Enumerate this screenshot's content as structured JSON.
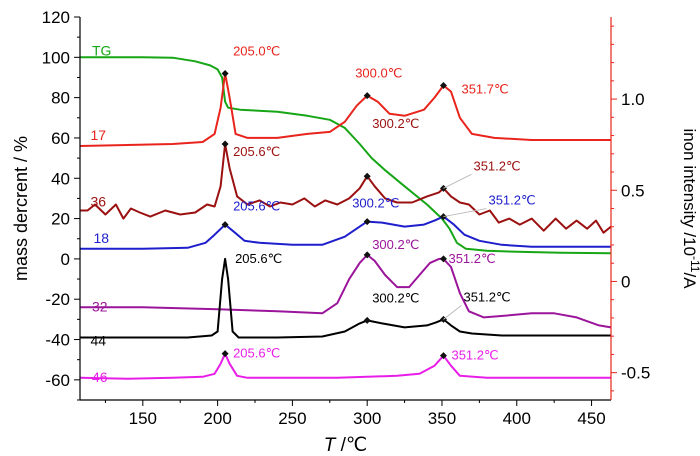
{
  "chart_data": {
    "type": "line",
    "xlabel": "T /°C",
    "xlabel_italic_part": "T",
    "xlabel_rest": " /℃",
    "ylabel_left": "mass dercrent / %",
    "ylabel_right": "inon intensity /10",
    "ylabel_right_exp": "-11",
    "ylabel_right_unit": "/A",
    "xlim": [
      108,
      463
    ],
    "ylim_left": [
      -70,
      120
    ],
    "ylim_right": [
      -0.65,
      1.45
    ],
    "x_ticks": [
      150,
      200,
      250,
      300,
      350,
      400,
      450
    ],
    "y_left_ticks": [
      -60,
      -40,
      -20,
      0,
      20,
      40,
      60,
      80,
      100,
      120
    ],
    "y_right_ticks": [
      -0.5,
      0,
      0.5,
      1.0
    ],
    "y_right_tick_labels": [
      "-0.5",
      "0",
      "0.5",
      "1.0"
    ],
    "grid": false,
    "colors": {
      "left_axis": "#000000",
      "right_axis": "#e8241c"
    },
    "series": [
      {
        "name": "TG",
        "color": "#16a616",
        "label_pos": [
          116,
          101
        ],
        "points": [
          [
            108,
            100
          ],
          [
            150,
            100
          ],
          [
            170,
            99.8
          ],
          [
            185,
            98
          ],
          [
            195,
            96
          ],
          [
            200,
            94
          ],
          [
            203,
            90
          ],
          [
            205,
            78
          ],
          [
            207,
            75
          ],
          [
            215,
            74
          ],
          [
            240,
            73
          ],
          [
            260,
            71
          ],
          [
            275,
            69
          ],
          [
            285,
            65
          ],
          [
            295,
            57
          ],
          [
            303,
            50
          ],
          [
            312,
            44
          ],
          [
            325,
            36
          ],
          [
            340,
            27
          ],
          [
            350,
            20
          ],
          [
            355,
            15
          ],
          [
            360,
            8
          ],
          [
            366,
            5
          ],
          [
            380,
            4
          ],
          [
            400,
            3.5
          ],
          [
            430,
            3
          ],
          [
            463,
            2.8
          ]
        ]
      },
      {
        "name": "17",
        "color": "#e8241c",
        "label_pos": [
          115,
          59
        ],
        "points": [
          [
            108,
            56
          ],
          [
            170,
            57
          ],
          [
            190,
            58
          ],
          [
            198,
            62
          ],
          [
            202,
            75
          ],
          [
            205,
            92
          ],
          [
            208,
            80
          ],
          [
            212,
            62
          ],
          [
            220,
            60
          ],
          [
            240,
            60
          ],
          [
            260,
            62
          ],
          [
            275,
            63
          ],
          [
            285,
            68
          ],
          [
            293,
            76
          ],
          [
            300,
            81
          ],
          [
            307,
            78
          ],
          [
            315,
            72
          ],
          [
            325,
            71
          ],
          [
            338,
            74
          ],
          [
            345,
            80
          ],
          [
            351,
            86
          ],
          [
            356,
            83
          ],
          [
            362,
            70
          ],
          [
            370,
            62
          ],
          [
            385,
            60
          ],
          [
            410,
            59
          ],
          [
            430,
            59
          ],
          [
            463,
            59
          ]
        ]
      },
      {
        "name": "36",
        "color": "#9b1010",
        "label_pos": [
          115,
          26
        ],
        "points": [
          [
            108,
            24
          ],
          [
            113,
            24
          ],
          [
            118,
            27
          ],
          [
            125,
            22
          ],
          [
            132,
            27
          ],
          [
            137,
            20
          ],
          [
            142,
            25
          ],
          [
            148,
            23
          ],
          [
            155,
            21
          ],
          [
            165,
            24
          ],
          [
            175,
            22
          ],
          [
            185,
            23
          ],
          [
            193,
            27
          ],
          [
            198,
            26
          ],
          [
            202,
            36
          ],
          [
            205,
            57
          ],
          [
            208,
            45
          ],
          [
            213,
            31
          ],
          [
            220,
            27
          ],
          [
            228,
            29
          ],
          [
            235,
            26
          ],
          [
            242,
            28
          ],
          [
            250,
            27
          ],
          [
            258,
            30
          ],
          [
            265,
            26
          ],
          [
            272,
            29
          ],
          [
            280,
            27
          ],
          [
            288,
            30
          ],
          [
            295,
            35
          ],
          [
            300,
            41
          ],
          [
            305,
            36
          ],
          [
            312,
            30
          ],
          [
            320,
            28
          ],
          [
            330,
            28
          ],
          [
            340,
            31
          ],
          [
            348,
            33
          ],
          [
            351,
            35
          ],
          [
            356,
            31
          ],
          [
            362,
            28
          ],
          [
            368,
            27
          ],
          [
            375,
            22
          ],
          [
            382,
            24
          ],
          [
            388,
            18
          ],
          [
            395,
            20
          ],
          [
            402,
            17
          ],
          [
            410,
            20
          ],
          [
            418,
            14
          ],
          [
            426,
            20
          ],
          [
            433,
            15
          ],
          [
            440,
            19
          ],
          [
            447,
            15
          ],
          [
            453,
            19
          ],
          [
            458,
            13
          ],
          [
            463,
            16
          ]
        ]
      },
      {
        "name": "18",
        "color": "#1e1ecc",
        "label_pos": [
          117,
          8
        ],
        "points": [
          [
            108,
            5
          ],
          [
            150,
            5
          ],
          [
            180,
            5.5
          ],
          [
            192,
            8
          ],
          [
            198,
            12
          ],
          [
            205,
            17
          ],
          [
            210,
            14
          ],
          [
            218,
            9
          ],
          [
            228,
            8
          ],
          [
            250,
            7
          ],
          [
            270,
            7
          ],
          [
            285,
            11
          ],
          [
            295,
            16
          ],
          [
            300,
            18.5
          ],
          [
            310,
            18
          ],
          [
            325,
            16
          ],
          [
            338,
            17
          ],
          [
            345,
            19
          ],
          [
            351,
            21
          ],
          [
            358,
            17
          ],
          [
            365,
            12
          ],
          [
            375,
            9
          ],
          [
            390,
            7
          ],
          [
            410,
            6
          ],
          [
            430,
            6
          ],
          [
            463,
            6
          ]
        ]
      },
      {
        "name": "32",
        "color": "#9b159b",
        "label_pos": [
          116,
          -26
        ],
        "points": [
          [
            108,
            -24
          ],
          [
            150,
            -24
          ],
          [
            200,
            -25
          ],
          [
            240,
            -26
          ],
          [
            270,
            -27
          ],
          [
            280,
            -22
          ],
          [
            288,
            -10
          ],
          [
            295,
            -2
          ],
          [
            300,
            2
          ],
          [
            305,
            -1
          ],
          [
            312,
            -8
          ],
          [
            320,
            -14
          ],
          [
            328,
            -14
          ],
          [
            335,
            -8
          ],
          [
            342,
            -2
          ],
          [
            348,
            0
          ],
          [
            351,
            0
          ],
          [
            356,
            -4
          ],
          [
            362,
            -17
          ],
          [
            368,
            -26
          ],
          [
            378,
            -29
          ],
          [
            395,
            -28
          ],
          [
            410,
            -27
          ],
          [
            425,
            -27
          ],
          [
            440,
            -29
          ],
          [
            455,
            -33
          ],
          [
            463,
            -34
          ]
        ]
      },
      {
        "name": "44",
        "color": "#000000",
        "label_pos": [
          115,
          -43
        ],
        "points": [
          [
            108,
            -39
          ],
          [
            150,
            -39
          ],
          [
            180,
            -39
          ],
          [
            196,
            -38
          ],
          [
            200,
            -36
          ],
          [
            203,
            -10
          ],
          [
            205,
            0
          ],
          [
            207,
            -10
          ],
          [
            210,
            -36
          ],
          [
            214,
            -39
          ],
          [
            240,
            -39
          ],
          [
            270,
            -38.5
          ],
          [
            285,
            -36
          ],
          [
            295,
            -32
          ],
          [
            300,
            -30.5
          ],
          [
            310,
            -32
          ],
          [
            325,
            -34
          ],
          [
            340,
            -33
          ],
          [
            346,
            -31.5
          ],
          [
            351,
            -30
          ],
          [
            356,
            -33
          ],
          [
            362,
            -36
          ],
          [
            370,
            -37
          ],
          [
            390,
            -38
          ],
          [
            420,
            -38
          ],
          [
            463,
            -38
          ]
        ]
      },
      {
        "name": "46",
        "color": "#e81ee8",
        "label_pos": [
          116,
          -61
        ],
        "points": [
          [
            108,
            -59
          ],
          [
            140,
            -59.5
          ],
          [
            170,
            -59
          ],
          [
            190,
            -58.5
          ],
          [
            198,
            -57
          ],
          [
            202,
            -52
          ],
          [
            205,
            -47
          ],
          [
            208,
            -52
          ],
          [
            213,
            -58
          ],
          [
            220,
            -59
          ],
          [
            240,
            -59
          ],
          [
            260,
            -59
          ],
          [
            280,
            -59
          ],
          [
            300,
            -58.5
          ],
          [
            320,
            -58
          ],
          [
            335,
            -57
          ],
          [
            345,
            -53
          ],
          [
            351,
            -48
          ],
          [
            356,
            -53
          ],
          [
            362,
            -58
          ],
          [
            380,
            -59
          ],
          [
            400,
            -59
          ],
          [
            420,
            -59
          ],
          [
            440,
            -59
          ],
          [
            463,
            -59
          ]
        ]
      }
    ],
    "annotations": [
      {
        "text": "205.0℃",
        "color": "#e8241c",
        "x": 205,
        "y": 92,
        "dx": 8,
        "dy": -18,
        "leader": false
      },
      {
        "text": "300.0℃",
        "color": "#e8241c",
        "x": 300,
        "y": 81,
        "dx": -12,
        "dy": -18,
        "leader": false
      },
      {
        "text": "351.7℃",
        "color": "#e8241c",
        "x": 351,
        "y": 86,
        "dx": 18,
        "dy": 8,
        "leader": false
      },
      {
        "text": "300.2℃",
        "color": "#9b1010",
        "x": 300,
        "y": 62,
        "dx": 5,
        "dy": -6,
        "leader": false
      },
      {
        "text": "205.6℃",
        "color": "#9b1010",
        "x": 205,
        "y": 57,
        "dx": 8,
        "dy": 12,
        "leader": false
      },
      {
        "text": "351.2℃",
        "color": "#9b1010",
        "x": 351,
        "y": 35,
        "dx": 30,
        "dy": -18,
        "leader": true
      },
      {
        "text": "205.6℃",
        "color": "#1e1ecc",
        "x": 205,
        "y": 17,
        "dx": 8,
        "dy": -14,
        "leader": false
      },
      {
        "text": "300.2℃",
        "color": "#1e1ecc",
        "x": 300,
        "y": 18.5,
        "dx": -15,
        "dy": -14,
        "leader": false
      },
      {
        "text": "351.2℃",
        "color": "#1e1ecc",
        "x": 351,
        "y": 21,
        "dx": 45,
        "dy": -12,
        "leader": true
      },
      {
        "text": "205.6℃",
        "color": "#000000",
        "x": 205,
        "y": 0,
        "dx": 10,
        "dy": 4,
        "leader": false
      },
      {
        "text": "300.2℃",
        "color": "#9b159b",
        "x": 300,
        "y": 2,
        "dx": 5,
        "dy": -6,
        "leader": false
      },
      {
        "text": "351.2℃",
        "color": "#9b159b",
        "x": 351,
        "y": 0,
        "dx": 5,
        "dy": 4,
        "leader": false
      },
      {
        "text": "300.2℃",
        "color": "#000000",
        "x": 300,
        "y": -30.5,
        "dx": 5,
        "dy": -18,
        "leader": false
      },
      {
        "text": "351.2℃",
        "color": "#000000",
        "x": 351,
        "y": -30,
        "dx": 20,
        "dy": -18,
        "leader": true
      },
      {
        "text": "205.6℃",
        "color": "#e81ee8",
        "x": 205,
        "y": -47,
        "dx": 8,
        "dy": 4,
        "leader": false
      },
      {
        "text": "351.2℃",
        "color": "#e81ee8",
        "x": 351,
        "y": -48,
        "dx": 8,
        "dy": 4,
        "leader": false
      }
    ],
    "markers": [
      {
        "x": 205,
        "y": 92
      },
      {
        "x": 300,
        "y": 81
      },
      {
        "x": 351,
        "y": 86
      },
      {
        "x": 205,
        "y": 57
      },
      {
        "x": 300,
        "y": 41
      },
      {
        "x": 351,
        "y": 35
      },
      {
        "x": 205,
        "y": 17
      },
      {
        "x": 300,
        "y": 18.5
      },
      {
        "x": 351,
        "y": 21
      },
      {
        "x": 300,
        "y": 2
      },
      {
        "x": 351,
        "y": 0
      },
      {
        "x": 300,
        "y": -30.5
      },
      {
        "x": 351,
        "y": -30
      },
      {
        "x": 205,
        "y": -47
      },
      {
        "x": 351,
        "y": -48
      }
    ]
  }
}
